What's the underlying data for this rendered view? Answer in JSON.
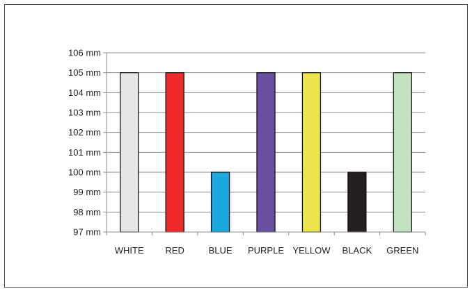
{
  "chart_data": {
    "type": "bar",
    "categories": [
      "WHITE",
      "RED",
      "BLUE",
      "PURPLE",
      "YELLOW",
      "BLACK",
      "GREEN"
    ],
    "values": [
      105,
      105,
      100,
      105,
      105,
      100,
      105
    ],
    "colors": [
      "#e6e6e6",
      "#ee2a2a",
      "#1ea8e0",
      "#6b4fa0",
      "#ede64a",
      "#231f20",
      "#c3e3c0"
    ],
    "yticks": [
      "97 mm",
      "98 mm",
      "99 mm",
      "100 mm",
      "101 mm",
      "102 mm",
      "103 mm",
      "104 mm",
      "105 mm",
      "106 mm"
    ],
    "ylim": [
      97,
      106
    ],
    "grid": true,
    "title": "",
    "xlabel": "",
    "ylabel": ""
  }
}
